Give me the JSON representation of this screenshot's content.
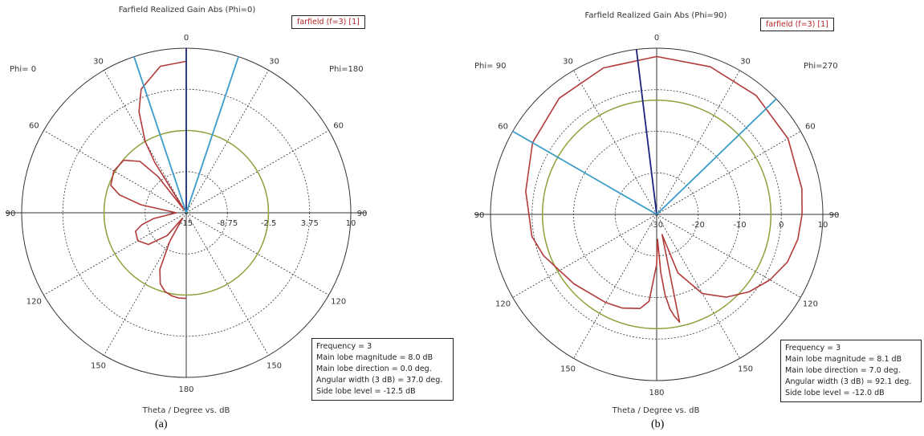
{
  "chart_data": [
    {
      "type": "polar",
      "title": "Farfield Realized Gain Abs (Phi=0)",
      "xlabel": "Theta / Degree vs. dB",
      "legend": "farfield (f=3) [1]",
      "phi_left": "Phi= 0",
      "phi_right": "Phi=180",
      "theta_labels": [
        "0",
        "30",
        "60",
        "90",
        "120",
        "150",
        "180",
        "150",
        "120",
        "90",
        "60",
        "30"
      ],
      "radial_ticks": [
        "-15",
        "-8.75",
        "-2.5",
        "3.75",
        "10"
      ],
      "r_min": -15,
      "r_max": 10,
      "series": [
        {
          "theta": [
            0,
            10,
            20,
            25,
            30,
            32,
            35,
            38,
            42,
            50,
            60,
            70,
            75,
            80,
            90,
            100,
            105,
            110,
            120,
            130,
            140,
            145,
            150,
            155,
            160,
            165,
            170,
            175,
            180
          ],
          "values": [
            8.0,
            7.6,
            5.0,
            2.0,
            -2.5,
            -6.0,
            -14.5,
            -8.0,
            -4.5,
            -2.6,
            -2.3,
            -2.8,
            -4.5,
            -8.0,
            -13.5,
            -10.0,
            -8.0,
            -6.8,
            -6.5,
            -7.5,
            -10.5,
            -14.0,
            -10.0,
            -5.5,
            -3.5,
            -2.6,
            -2.2,
            -2.0,
            -2.0
          ]
        }
      ],
      "reference_circle": -2.5,
      "beam_lines_deg": [
        0,
        -18.5,
        18.5
      ],
      "info": {
        "frequency": "Frequency = 3",
        "magnitude": "Main lobe magnitude =   8.0 dB",
        "direction": "Main lobe direction =   0.0 deg.",
        "width": "Angular width (3 dB) =   37.0 deg.",
        "sidelobe": "Side lobe level = -12.5 dB"
      },
      "caption": "(a)"
    },
    {
      "type": "polar",
      "title": "Farfield Realized Gain Abs (Phi=90)",
      "xlabel": "Theta / Degree vs. dB",
      "legend": "farfield (f=3) [1]",
      "phi_left": "Phi= 90",
      "phi_right": "Phi=270",
      "theta_labels": [
        "0",
        "30",
        "60",
        "90",
        "120",
        "150",
        "180",
        "150",
        "120",
        "90",
        "60",
        "30"
      ],
      "radial_ticks": [
        "-30",
        "-20",
        "-10",
        "0",
        "10"
      ],
      "r_min": -30,
      "r_max": 10,
      "series": [
        {
          "theta": [
            0,
            20,
            40,
            60,
            80,
            100,
            110,
            130,
            150,
            160,
            170,
            175,
            180,
            -178,
            -176,
            -174,
            -172,
            -170,
            -168,
            -165,
            -160,
            -150,
            -140,
            -130,
            -120,
            -110,
            -100,
            -90,
            -80,
            -60,
            -40,
            -20,
            0
          ],
          "values": [
            8.0,
            7.5,
            6.5,
            4.5,
            2.0,
            0.5,
            -1.0,
            -4.0,
            -5.5,
            -6.0,
            -7.0,
            -9.0,
            -18.0,
            -24.0,
            -16.0,
            -10.5,
            -7.0,
            -5.0,
            -3.5,
            -25.0,
            -15.0,
            -8.0,
            -4.0,
            -1.0,
            1.5,
            3.5,
            4.5,
            5.0,
            5.5,
            6.5,
            7.3,
            7.8,
            8.0
          ]
        }
      ],
      "reference_circle": -2.5,
      "beam_lines_deg": [
        7.0,
        -46.0,
        60.0
      ],
      "info": {
        "frequency": "Frequency = 3",
        "magnitude": "Main lobe magnitude =   8.1 dB",
        "direction": "Main lobe direction =   7.0 deg.",
        "width": "Angular width (3 dB) =   92.1 deg.",
        "sidelobe": "Side lobe level = -12.0 dB"
      },
      "caption": "(b)"
    }
  ],
  "colors": {
    "curve": "#b23a3a",
    "reference": "#8aa23a",
    "beam": "#3a9cc8",
    "main": "#1a237e",
    "grid": "#333333"
  }
}
